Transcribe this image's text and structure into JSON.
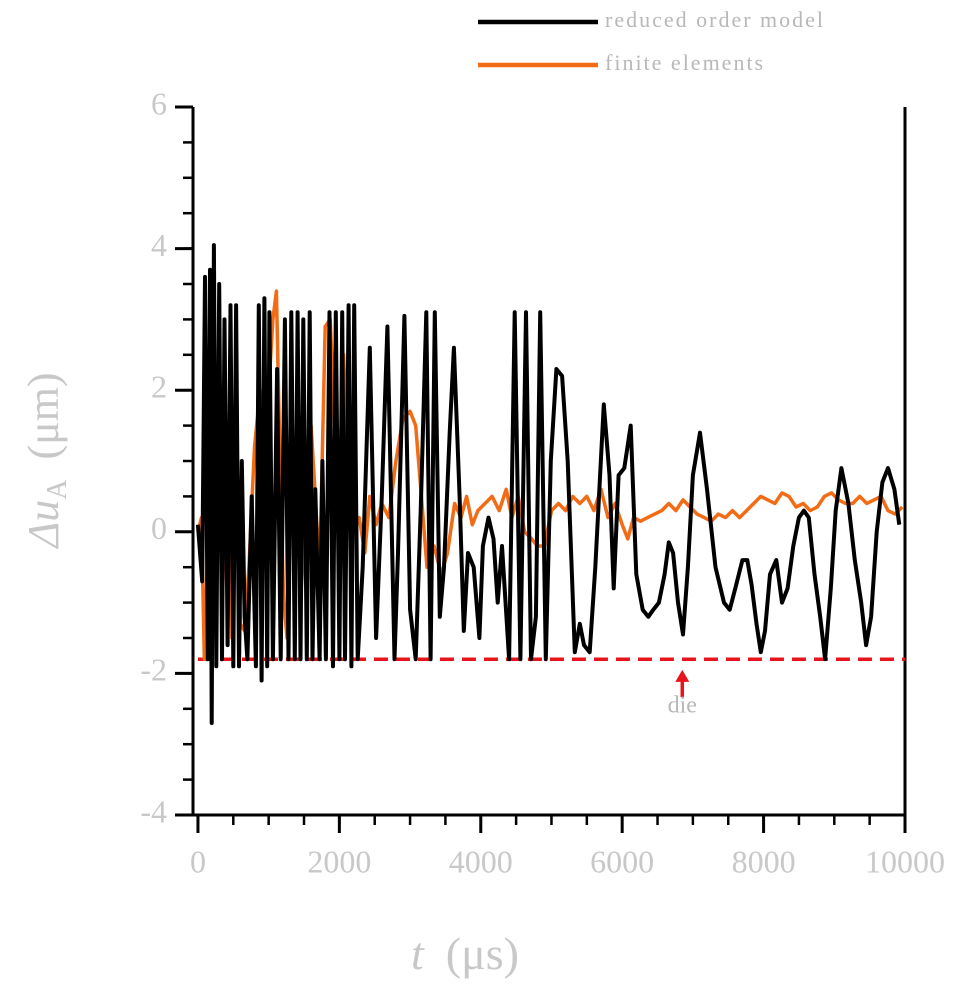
{
  "chart_data": {
    "type": "line",
    "xlabel": {
      "main": "t",
      "unit": "(μs)"
    },
    "ylabel": {
      "main": "Δu",
      "sub": "A",
      "unit": "(μm)"
    },
    "xlim": [
      -70,
      10000
    ],
    "xticks": [
      0,
      2000,
      4000,
      6000,
      8000,
      10000
    ],
    "xminor": 500,
    "ylim": [
      -4,
      6
    ],
    "yticks": [
      -4,
      -2,
      0,
      2,
      4,
      6
    ],
    "yminor": 0.5,
    "reference_line": {
      "value": -1.8,
      "color": "#e8141b"
    },
    "annotation": {
      "text": "die",
      "x": 6850,
      "y": -2.25,
      "color": "#e8141b"
    },
    "series": [
      {
        "name": "reduced order model",
        "color": "#000000",
        "x": [
          0,
          60,
          100,
          140,
          170,
          195,
          225,
          260,
          300,
          340,
          375,
          420,
          460,
          500,
          540,
          580,
          620,
          660,
          700,
          760,
          820,
          860,
          900,
          940,
          980,
          1010,
          1060,
          1120,
          1170,
          1230,
          1280,
          1320,
          1370,
          1410,
          1450,
          1490,
          1540,
          1580,
          1620,
          1660,
          1720,
          1760,
          1810,
          1860,
          1910,
          1950,
          2000,
          2040,
          2080,
          2130,
          2170,
          2210,
          2260,
          2330,
          2430,
          2520,
          2600,
          2680,
          2780,
          2830,
          2920,
          3000,
          3080,
          3150,
          3230,
          3290,
          3350,
          3420,
          3480,
          3560,
          3620,
          3700,
          3760,
          3820,
          3900,
          3980,
          4030,
          4110,
          4180,
          4240,
          4300,
          4400,
          4480,
          4560,
          4640,
          4710,
          4780,
          4840,
          4920,
          4990,
          5070,
          5150,
          5230,
          5330,
          5400,
          5460,
          5540,
          5620,
          5740,
          5820,
          5880,
          5950,
          6030,
          6120,
          6200,
          6290,
          6370,
          6440,
          6520,
          6600,
          6660,
          6720,
          6790,
          6860,
          6930,
          7000,
          7100,
          7200,
          7320,
          7440,
          7520,
          7600,
          7700,
          7770,
          7830,
          7900,
          7960,
          8020,
          8090,
          8180,
          8260,
          8340,
          8420,
          8500,
          8570,
          8640,
          8720,
          8800,
          8870,
          8950,
          9020,
          9100,
          9200,
          9290,
          9380,
          9450,
          9520,
          9600,
          9680,
          9760,
          9850,
          9920
        ],
        "values": [
          0.1,
          -0.7,
          3.6,
          -1.8,
          3.7,
          -2.7,
          4.05,
          -1.9,
          3.5,
          -1.8,
          3.0,
          -1.6,
          3.2,
          -1.9,
          3.2,
          -1.9,
          1.0,
          -1.2,
          -1.8,
          0.5,
          -1.9,
          3.2,
          -2.1,
          3.3,
          -1.9,
          3.1,
          -1.8,
          2.3,
          -1.8,
          3.0,
          -1.8,
          3.1,
          -1.8,
          3.1,
          -1.8,
          3.0,
          -1.8,
          3.1,
          -1.8,
          0.6,
          -1.8,
          1.0,
          -1.8,
          3.1,
          -1.9,
          3.1,
          -1.8,
          3.1,
          -1.8,
          3.2,
          -1.9,
          3.2,
          -1.8,
          -0.5,
          2.6,
          -1.5,
          0.5,
          2.9,
          -1.8,
          -0.3,
          3.05,
          -1.1,
          -1.8,
          0.3,
          3.1,
          -1.8,
          3.1,
          -1.2,
          -0.5,
          1.4,
          2.6,
          0.5,
          -1.4,
          -0.3,
          -0.5,
          -1.5,
          -0.2,
          0.2,
          -0.1,
          -1.0,
          -0.2,
          -1.8,
          3.1,
          -1.8,
          3.1,
          -1.8,
          -1.2,
          3.1,
          -1.8,
          1.0,
          2.3,
          2.2,
          1.0,
          -1.7,
          -1.3,
          -1.6,
          -1.7,
          -0.5,
          1.8,
          0.8,
          -0.8,
          0.8,
          0.9,
          1.5,
          -0.6,
          -1.1,
          -1.2,
          -1.1,
          -1.0,
          -0.6,
          -0.15,
          -0.3,
          -1.0,
          -1.45,
          -0.5,
          0.8,
          1.4,
          0.6,
          -0.5,
          -1.0,
          -1.1,
          -0.8,
          -0.4,
          -0.4,
          -0.75,
          -1.3,
          -1.7,
          -1.4,
          -0.6,
          -0.4,
          -1.0,
          -0.8,
          -0.2,
          0.2,
          0.3,
          0.2,
          -0.6,
          -1.2,
          -1.8,
          -0.8,
          0.3,
          0.9,
          0.4,
          -0.4,
          -1.0,
          -1.6,
          -1.2,
          0.0,
          0.7,
          0.9,
          0.6,
          0.1
        ]
      },
      {
        "name": "finite elements",
        "color": "#f26c16",
        "x": [
          0,
          50,
          90,
          130,
          180,
          230,
          300,
          350,
          420,
          480,
          540,
          600,
          660,
          720,
          800,
          880,
          940,
          1000,
          1060,
          1110,
          1160,
          1210,
          1260,
          1310,
          1360,
          1410,
          1460,
          1540,
          1600,
          1660,
          1720,
          1800,
          1870,
          1930,
          1990,
          2060,
          2120,
          2200,
          2280,
          2360,
          2430,
          2520,
          2600,
          2700,
          2800,
          2900,
          3000,
          3080,
          3160,
          3240,
          3340,
          3440,
          3530,
          3630,
          3720,
          3800,
          3880,
          3960,
          4060,
          4160,
          4260,
          4360,
          4440,
          4530,
          4620,
          4720,
          4800,
          4900,
          5000,
          5100,
          5200,
          5300,
          5400,
          5500,
          5600,
          5700,
          5800,
          5900,
          6000,
          6080,
          6160,
          6260,
          6360,
          6460,
          6560,
          6660,
          6760,
          6860,
          6960,
          7060,
          7160,
          7260,
          7360,
          7460,
          7560,
          7660,
          7760,
          7860,
          7960,
          8060,
          8160,
          8260,
          8360,
          8460,
          8560,
          8660,
          8760,
          8860,
          8960,
          9060,
          9160,
          9260,
          9360,
          9460,
          9560,
          9660,
          9760,
          9860,
          9960
        ],
        "values": [
          0,
          0.2,
          -1.8,
          -0.5,
          2.0,
          -1.0,
          2.5,
          -0.8,
          1.5,
          -1.5,
          0.6,
          -1.3,
          -1.4,
          -0.5,
          1.2,
          2.0,
          1.0,
          2.0,
          3.0,
          3.4,
          1.0,
          -0.9,
          -1.5,
          0.2,
          1.3,
          0.4,
          -0.8,
          0.3,
          1.5,
          0.5,
          -0.6,
          2.9,
          3.0,
          1.6,
          0.5,
          2.5,
          1.0,
          0.0,
          0.2,
          -0.3,
          0.5,
          0.1,
          0.4,
          0.2,
          1.0,
          1.6,
          1.7,
          1.5,
          0.5,
          -0.5,
          -0.2,
          -0.6,
          -0.3,
          0.4,
          0.2,
          0.5,
          0.1,
          0.3,
          0.4,
          0.5,
          0.3,
          0.6,
          0.2,
          0.5,
          0.0,
          -0.1,
          -0.2,
          -0.2,
          0.3,
          0.4,
          0.3,
          0.5,
          0.4,
          0.5,
          0.3,
          0.6,
          0.2,
          0.4,
          0.1,
          -0.1,
          0.2,
          0.15,
          0.2,
          0.25,
          0.3,
          0.4,
          0.3,
          0.45,
          0.35,
          0.25,
          0.2,
          0.15,
          0.25,
          0.2,
          0.3,
          0.2,
          0.3,
          0.4,
          0.5,
          0.45,
          0.4,
          0.55,
          0.5,
          0.35,
          0.4,
          0.3,
          0.35,
          0.5,
          0.55,
          0.45,
          0.4,
          0.4,
          0.5,
          0.4,
          0.45,
          0.5,
          0.3,
          0.25,
          0.35
        ]
      }
    ]
  }
}
